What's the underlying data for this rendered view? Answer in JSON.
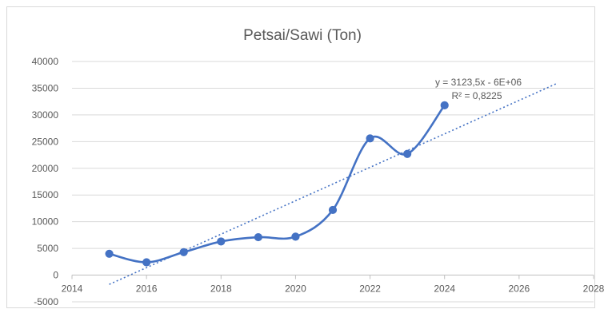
{
  "chart_data": {
    "type": "scatter",
    "title": "Petsai/Sawi (Ton)",
    "xlabel": "",
    "ylabel": "",
    "xlim": [
      2014,
      2028
    ],
    "ylim": [
      -5000,
      40000
    ],
    "x_ticks": [
      "2014",
      "2016",
      "2018",
      "2020",
      "2022",
      "2024",
      "2026",
      "2028"
    ],
    "y_ticks": [
      "-5000",
      "0",
      "5000",
      "10000",
      "15000",
      "20000",
      "25000",
      "30000",
      "35000",
      "40000"
    ],
    "grid": "horizontal",
    "series": [
      {
        "x": [
          2015,
          2016,
          2017,
          2018,
          2019,
          2020,
          2021,
          2022,
          2023,
          2024
        ],
        "y": [
          4000,
          2400,
          4300,
          6300,
          7100,
          7200,
          12200,
          25600,
          22700,
          31800
        ],
        "color": "#4472c4",
        "line": "smooth"
      }
    ],
    "trendline": {
      "type": "linear",
      "slope": 3123.5,
      "x_range": [
        2015,
        2027
      ],
      "color": "#4472c4",
      "style": "dotted"
    },
    "annotations": {
      "equation": "y = 3123,5x - 6E+06",
      "r_squared": "R² = 0,8225"
    }
  }
}
